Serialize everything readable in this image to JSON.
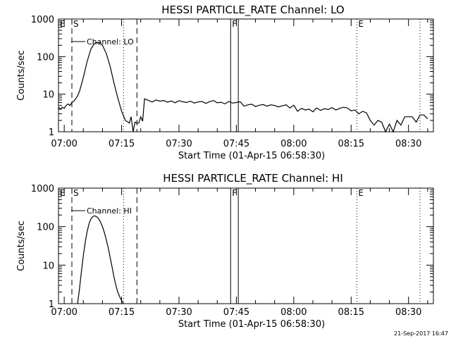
{
  "footer": {
    "timestamp": "21-Sep-2017 16:47"
  },
  "chart_data": [
    {
      "type": "line",
      "title": "HESSI PARTICLE_RATE Channel: LO",
      "xlabel": "Start Time (01-Apr-15 06:58:30)",
      "ylabel": "Counts/sec",
      "yscale": "log",
      "xlim": [
        "06:58:30",
        "08:36:30"
      ],
      "ylim": [
        1,
        1000
      ],
      "x_ticks": [
        "07:00",
        "07:15",
        "07:30",
        "07:45",
        "08:00",
        "08:15",
        "08:30"
      ],
      "y_ticks": [
        "1",
        "10",
        "100",
        "1000"
      ],
      "legend": "Channel: LO",
      "flags": [
        {
          "label": "E",
          "time": "06:58:30",
          "style": "dotted"
        },
        {
          "label": "S",
          "time": "07:02:00",
          "style": "dashed"
        },
        {
          "label": "",
          "time": "07:15:30",
          "style": "dotted"
        },
        {
          "label": "",
          "time": "07:19:00",
          "style": "dashed"
        },
        {
          "label": "F",
          "time": "07:43:30",
          "style": "solid"
        },
        {
          "label": "",
          "time": "07:45:30",
          "style": "solid"
        },
        {
          "label": "E",
          "time": "08:16:30",
          "style": "dotted"
        },
        {
          "label": "",
          "time": "08:33:00",
          "style": "dotted"
        }
      ],
      "series": [
        {
          "x": [
            "06:58:30",
            "06:59:00",
            "06:59:30",
            "07:00:00",
            "07:00:30",
            "07:01:00",
            "07:01:30",
            "07:02:00",
            "07:02:30",
            "07:03:00",
            "07:03:30",
            "07:04:00",
            "07:05:00",
            "07:06:00",
            "07:07:00",
            "07:08:00",
            "07:09:00",
            "07:10:00",
            "07:11:00",
            "07:12:00",
            "07:13:00",
            "07:14:00",
            "07:15:00",
            "07:16:00",
            "07:17:00",
            "07:17:30",
            "07:18:00",
            "07:18:30",
            "07:19:00",
            "07:19:30",
            "07:20:00",
            "07:20:30",
            "07:21:00",
            "07:22:00",
            "07:23:00",
            "07:24:00",
            "07:25:00",
            "07:26:00",
            "07:27:00",
            "07:28:00",
            "07:29:00",
            "07:30:00",
            "07:31:00",
            "07:32:00",
            "07:33:00",
            "07:34:00",
            "07:35:00",
            "07:36:00",
            "07:37:00",
            "07:38:00",
            "07:39:00",
            "07:40:00",
            "07:41:00",
            "07:42:00",
            "07:43:00",
            "07:44:00",
            "07:45:00",
            "07:46:00",
            "07:47:00",
            "07:48:00",
            "07:49:00",
            "07:50:00",
            "07:51:00",
            "07:52:00",
            "07:53:00",
            "07:54:00",
            "07:55:00",
            "07:56:00",
            "07:57:00",
            "07:58:00",
            "07:59:00",
            "08:00:00",
            "08:01:00",
            "08:02:00",
            "08:03:00",
            "08:04:00",
            "08:05:00",
            "08:06:00",
            "08:07:00",
            "08:08:00",
            "08:09:00",
            "08:10:00",
            "08:11:00",
            "08:12:00",
            "08:13:00",
            "08:14:00",
            "08:15:00",
            "08:16:00",
            "08:17:00",
            "08:18:00",
            "08:19:00",
            "08:20:00",
            "08:21:00",
            "08:22:00",
            "08:23:00",
            "08:24:00",
            "08:25:00",
            "08:26:00",
            "08:27:00",
            "08:28:00",
            "08:29:00",
            "08:30:00",
            "08:31:00",
            "08:32:00",
            "08:33:00",
            "08:34:00",
            "08:35:00"
          ],
          "y": [
            4.5,
            4,
            4.5,
            4.2,
            5,
            5.5,
            5,
            6,
            6.5,
            7.5,
            9,
            12,
            28,
            75,
            160,
            230,
            240,
            200,
            120,
            55,
            20,
            8,
            3.5,
            2,
            1.7,
            2.5,
            1,
            1.8,
            1.7,
            1.7,
            2.5,
            1.9,
            7.5,
            6.8,
            6.2,
            7,
            6.5,
            6.8,
            6.1,
            6.6,
            5.9,
            6.7,
            6.3,
            6,
            6.5,
            5.8,
            6.2,
            6.4,
            5.7,
            6.3,
            6.8,
            5.9,
            6.1,
            5.5,
            6.4,
            5.8,
            6,
            6.3,
            4.8,
            5.2,
            5.4,
            4.7,
            5.1,
            5.3,
            4.8,
            5.2,
            5,
            4.6,
            4.9,
            5.2,
            4.3,
            5.1,
            3.5,
            4.2,
            3.8,
            4,
            3.4,
            4.3,
            3.7,
            4.1,
            3.9,
            4.4,
            3.8,
            4.2,
            4.5,
            4.3,
            3.6,
            3.8,
            3,
            3.5,
            3.2,
            2,
            1.5,
            2,
            1.8,
            1,
            1.6,
            1,
            2,
            1.5,
            2.5,
            2.5,
            2.5,
            1.8,
            2.8,
            2.8,
            2.2
          ]
        }
      ]
    },
    {
      "type": "line",
      "title": "HESSI PARTICLE_RATE Channel: HI",
      "xlabel": "Start Time (01-Apr-15 06:58:30)",
      "ylabel": "Counts/sec",
      "yscale": "log",
      "xlim": [
        "06:58:30",
        "08:36:30"
      ],
      "ylim": [
        1,
        1000
      ],
      "x_ticks": [
        "07:00",
        "07:15",
        "07:30",
        "07:45",
        "08:00",
        "08:15",
        "08:30"
      ],
      "y_ticks": [
        "1",
        "10",
        "100",
        "1000"
      ],
      "legend": "Channel: HI",
      "flags": [
        {
          "label": "E",
          "time": "06:58:30",
          "style": "dotted"
        },
        {
          "label": "S",
          "time": "07:02:00",
          "style": "dashed"
        },
        {
          "label": "",
          "time": "07:15:30",
          "style": "dotted"
        },
        {
          "label": "",
          "time": "07:19:00",
          "style": "dashed"
        },
        {
          "label": "F",
          "time": "07:43:30",
          "style": "solid"
        },
        {
          "label": "",
          "time": "07:45:30",
          "style": "solid"
        },
        {
          "label": "E",
          "time": "08:16:30",
          "style": "dotted"
        },
        {
          "label": "",
          "time": "08:33:00",
          "style": "dotted"
        }
      ],
      "series": [
        {
          "x": [
            "07:03:30",
            "07:04:00",
            "07:04:30",
            "07:05:00",
            "07:05:30",
            "07:06:00",
            "07:06:30",
            "07:07:00",
            "07:07:30",
            "07:08:00",
            "07:08:30",
            "07:09:00",
            "07:09:30",
            "07:10:00",
            "07:10:30",
            "07:11:00",
            "07:11:30",
            "07:12:00",
            "07:12:30",
            "07:13:00",
            "07:13:30",
            "07:14:00",
            "07:14:30",
            "07:15:00",
            "07:15:30"
          ],
          "y": [
            1,
            2.5,
            7,
            18,
            40,
            75,
            120,
            160,
            185,
            190,
            180,
            160,
            130,
            100,
            70,
            45,
            28,
            16,
            9,
            5,
            3,
            2,
            1.5,
            1.2,
            1
          ]
        }
      ]
    }
  ]
}
